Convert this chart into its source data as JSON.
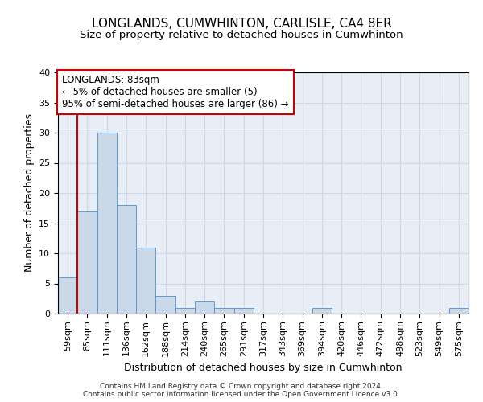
{
  "title1": "LONGLANDS, CUMWHINTON, CARLISLE, CA4 8ER",
  "title2": "Size of property relative to detached houses in Cumwhinton",
  "xlabel": "Distribution of detached houses by size in Cumwhinton",
  "ylabel": "Number of detached properties",
  "footer": "Contains HM Land Registry data © Crown copyright and database right 2024.\nContains public sector information licensed under the Open Government Licence v3.0.",
  "bin_labels": [
    "59sqm",
    "85sqm",
    "111sqm",
    "136sqm",
    "162sqm",
    "188sqm",
    "214sqm",
    "240sqm",
    "265sqm",
    "291sqm",
    "317sqm",
    "343sqm",
    "369sqm",
    "394sqm",
    "420sqm",
    "446sqm",
    "472sqm",
    "498sqm",
    "523sqm",
    "549sqm",
    "575sqm"
  ],
  "bar_values": [
    6,
    17,
    30,
    18,
    11,
    3,
    1,
    2,
    1,
    1,
    0,
    0,
    0,
    1,
    0,
    0,
    0,
    0,
    0,
    0,
    1
  ],
  "bar_color": "#c9d9e8",
  "bar_edge_color": "#5b9bd5",
  "annotation_box_text": "LONGLANDS: 83sqm\n← 5% of detached houses are smaller (5)\n95% of semi-detached houses are larger (86) →",
  "annotation_box_color": "#ffffff",
  "annotation_box_edge_color": "#cc0000",
  "vline_color": "#cc0000",
  "vline_index": 1,
  "ylim": [
    0,
    40
  ],
  "yticks": [
    0,
    5,
    10,
    15,
    20,
    25,
    30,
    35,
    40
  ],
  "grid_color": "#d0d8e8",
  "background_color": "#e8eef6",
  "title1_fontsize": 11,
  "title2_fontsize": 9.5,
  "xlabel_fontsize": 9,
  "ylabel_fontsize": 9,
  "tick_fontsize": 8,
  "annotation_fontsize": 8.5,
  "footer_fontsize": 6.5
}
